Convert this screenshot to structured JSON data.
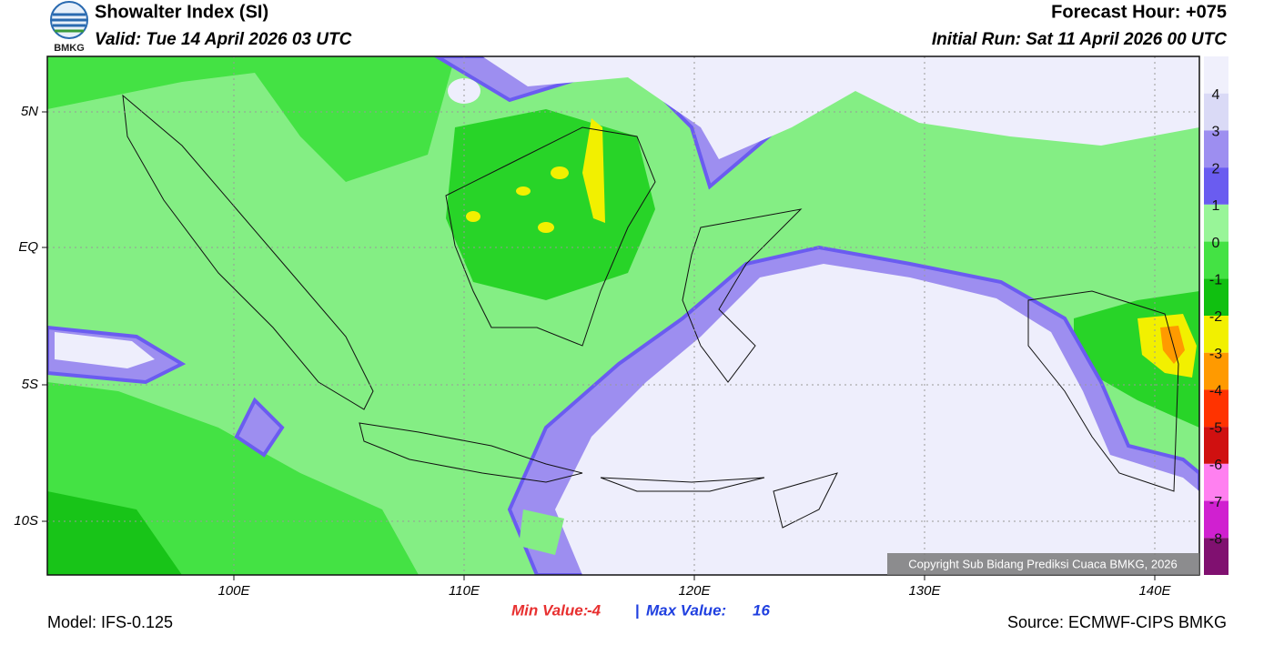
{
  "header": {
    "logo_text": "BMKG",
    "title": "Showalter Index (SI)",
    "valid": "Valid: Tue 14 April 2026 03 UTC",
    "forecast_hour": "Forecast Hour: +075",
    "initial_run": "Initial Run: Sat 11 April 2026 00 UTC"
  },
  "map": {
    "lat_labels": [
      "5N",
      "EQ",
      "5S",
      "10S"
    ],
    "lon_labels": [
      "100E",
      "110E",
      "120E",
      "130E",
      "140E"
    ],
    "copyright": "Copyright Sub Bidang Prediksi Cuaca BMKG, 2026"
  },
  "colorbar": {
    "top_color": "#f0f0fc",
    "items": [
      {
        "label": "4",
        "color": "#dadaf6"
      },
      {
        "label": "3",
        "color": "#9d8ef0"
      },
      {
        "label": "2",
        "color": "#6a5cf0"
      },
      {
        "label": "1",
        "color": "#98f598"
      },
      {
        "label": "0",
        "color": "#44e244"
      },
      {
        "label": "-1",
        "color": "#10c010"
      },
      {
        "label": "-2",
        "color": "#f2f000"
      },
      {
        "label": "-3",
        "color": "#ff9a00"
      },
      {
        "label": "-4",
        "color": "#ff3300"
      },
      {
        "label": "-5",
        "color": "#d01010"
      },
      {
        "label": "-6",
        "color": "#ff80f0"
      },
      {
        "label": "-7",
        "color": "#d020d0"
      },
      {
        "label": "-8",
        "color": "#801070"
      }
    ]
  },
  "footer": {
    "model": "Model: IFS-0.125",
    "min_label": "Min Value:",
    "min_value": "-4",
    "separator": "|",
    "max_label": "Max Value:",
    "max_value": "16",
    "source": "Source: ECMWF-CIPS BMKG"
  }
}
